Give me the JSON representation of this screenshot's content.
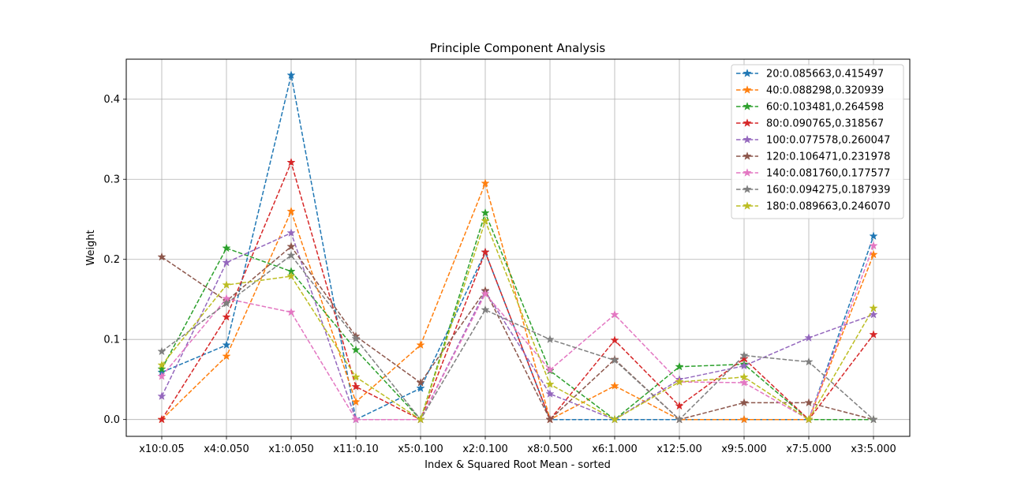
{
  "chart_data": {
    "type": "line",
    "title": "Principle Component Analysis",
    "xlabel": "Index & Squared Root Mean - sorted",
    "ylabel": "Weight",
    "categories": [
      "x10:0.05",
      "x4:0.050",
      "x1:0.050",
      "x11:0.10",
      "x5:0.100",
      "x2:0.100",
      "x8:0.500",
      "x6:1.000",
      "x12:5.00",
      "x9:5.000",
      "x7:5.000",
      "x3:5.000"
    ],
    "ylim": [
      -0.021,
      0.45
    ],
    "yticks": [
      0.0,
      0.1,
      0.2,
      0.3,
      0.4
    ],
    "ytick_labels": [
      "0.0",
      "0.1",
      "0.2",
      "0.3",
      "0.4"
    ],
    "grid": true,
    "legend_position": "top-right",
    "line_style": "dashed",
    "marker": "star",
    "series": [
      {
        "name": "20:0.085663,0.415497",
        "color": "#1f77b4",
        "values": [
          0.059,
          0.093,
          0.43,
          0.0,
          0.039,
          0.209,
          0.0,
          0.0,
          0.0,
          0.0,
          0.0,
          0.229
        ]
      },
      {
        "name": "40:0.088298,0.320939",
        "color": "#ff7f0e",
        "values": [
          0.0,
          0.079,
          0.26,
          0.022,
          0.093,
          0.295,
          0.0,
          0.042,
          0.0,
          0.0,
          0.0,
          0.206
        ]
      },
      {
        "name": "60:0.103481,0.264598",
        "color": "#2ca02c",
        "values": [
          0.063,
          0.214,
          0.185,
          0.087,
          0.0,
          0.258,
          0.061,
          0.0,
          0.066,
          0.069,
          0.0,
          0.0
        ]
      },
      {
        "name": "80:0.090765,0.318567",
        "color": "#d62728",
        "values": [
          0.0,
          0.128,
          0.321,
          0.041,
          0.0,
          0.209,
          0.0,
          0.099,
          0.017,
          0.076,
          0.0,
          0.106
        ]
      },
      {
        "name": "100:0.077578,0.260047",
        "color": "#9467bd",
        "values": [
          0.029,
          0.196,
          0.233,
          0.0,
          0.0,
          0.16,
          0.032,
          0.0,
          0.05,
          0.067,
          0.102,
          0.131
        ]
      },
      {
        "name": "120:0.106471,0.231978",
        "color": "#8c564b",
        "values": [
          0.203,
          0.148,
          0.216,
          0.104,
          0.046,
          0.161,
          0.0,
          0.075,
          0.0,
          0.021,
          0.021,
          0.0
        ]
      },
      {
        "name": "140:0.081760,0.177577",
        "color": "#e377c2",
        "values": [
          0.054,
          0.151,
          0.134,
          0.0,
          0.0,
          0.157,
          0.062,
          0.131,
          0.047,
          0.046,
          0.0,
          0.217
        ]
      },
      {
        "name": "160:0.094275,0.187939",
        "color": "#7f7f7f",
        "values": [
          0.085,
          0.145,
          0.205,
          0.101,
          0.0,
          0.137,
          0.1,
          0.074,
          0.0,
          0.08,
          0.072,
          0.0
        ]
      },
      {
        "name": "180:0.089663,0.246070",
        "color": "#bcbd22",
        "values": [
          0.068,
          0.168,
          0.179,
          0.053,
          0.0,
          0.248,
          0.044,
          0.0,
          0.047,
          0.053,
          0.0,
          0.139
        ]
      }
    ]
  }
}
